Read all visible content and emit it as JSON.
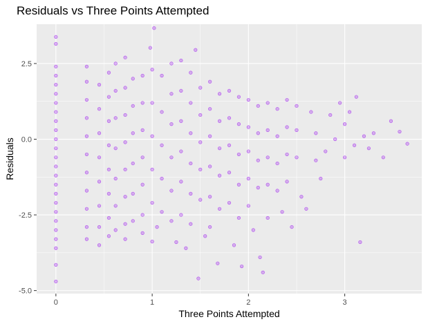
{
  "chart_data": {
    "type": "scatter",
    "title": "Residuals vs Three Points Attempted",
    "xlabel": "Three Points Attempted",
    "ylabel": "Residuals",
    "xlim": [
      -0.2,
      3.8
    ],
    "ylim": [
      -5.1,
      3.8
    ],
    "x_ticks": [
      0,
      1,
      2,
      3
    ],
    "x_tick_labels": [
      "0",
      "1",
      "2",
      "3"
    ],
    "y_ticks": [
      -5.0,
      -2.5,
      0.0,
      2.5
    ],
    "y_tick_labels": [
      "-5.0",
      "-2.5",
      "0.0",
      "2.5"
    ],
    "grid": true,
    "background": "#ebebeb",
    "grid_color": "#ffffff",
    "point_color": "#a020f0",
    "point_fill_opacity": 0.3,
    "series": [
      {
        "points": [
          [
            0,
            3.38
          ],
          [
            0,
            3.15
          ],
          [
            0,
            2.4
          ],
          [
            0,
            2.1
          ],
          [
            0,
            1.8
          ],
          [
            0,
            1.5
          ],
          [
            0,
            1.2
          ],
          [
            0,
            0.9
          ],
          [
            0,
            0.6
          ],
          [
            0,
            0.3
          ],
          [
            0,
            0.0
          ],
          [
            0,
            -0.3
          ],
          [
            0,
            -0.6
          ],
          [
            0,
            -0.9
          ],
          [
            0,
            -1.2
          ],
          [
            0,
            -1.5
          ],
          [
            0,
            -1.8
          ],
          [
            0,
            -2.1
          ],
          [
            0,
            -2.4
          ],
          [
            0,
            -2.7
          ],
          [
            0,
            -3.0
          ],
          [
            0,
            -3.3
          ],
          [
            0,
            -3.6
          ],
          [
            0,
            -4.15
          ],
          [
            0,
            -4.7
          ],
          [
            0.32,
            2.4
          ],
          [
            0.32,
            1.9
          ],
          [
            0.32,
            1.3
          ],
          [
            0.32,
            0.7
          ],
          [
            0.32,
            0.1
          ],
          [
            0.32,
            -0.5
          ],
          [
            0.32,
            -1.1
          ],
          [
            0.32,
            -1.7
          ],
          [
            0.32,
            -2.3
          ],
          [
            0.32,
            -2.9
          ],
          [
            0.32,
            -3.3
          ],
          [
            0.45,
            1.8
          ],
          [
            0.45,
            1.0
          ],
          [
            0.45,
            0.2
          ],
          [
            0.45,
            -0.6
          ],
          [
            0.45,
            -1.4
          ],
          [
            0.45,
            -2.2
          ],
          [
            0.45,
            -2.9
          ],
          [
            0.45,
            -3.5
          ],
          [
            0.55,
            2.2
          ],
          [
            0.55,
            1.4
          ],
          [
            0.55,
            0.6
          ],
          [
            0.55,
            -0.2
          ],
          [
            0.55,
            -1.0
          ],
          [
            0.55,
            -1.8
          ],
          [
            0.55,
            -2.6
          ],
          [
            0.55,
            -3.2
          ],
          [
            0.62,
            2.5
          ],
          [
            0.62,
            1.6
          ],
          [
            0.62,
            0.7
          ],
          [
            0.62,
            -0.3
          ],
          [
            0.62,
            -1.3
          ],
          [
            0.62,
            -2.2
          ],
          [
            0.62,
            -3.0
          ],
          [
            0.72,
            2.7
          ],
          [
            0.72,
            1.7
          ],
          [
            0.72,
            0.8
          ],
          [
            0.72,
            -0.1
          ],
          [
            0.72,
            -1.0
          ],
          [
            0.72,
            -1.9
          ],
          [
            0.72,
            -2.8
          ],
          [
            0.72,
            -3.3
          ],
          [
            0.8,
            2.0
          ],
          [
            0.8,
            1.1
          ],
          [
            0.8,
            0.2
          ],
          [
            0.8,
            -0.8
          ],
          [
            0.8,
            -1.8
          ],
          [
            0.8,
            -2.7
          ],
          [
            0.9,
            2.1
          ],
          [
            0.9,
            1.2
          ],
          [
            0.9,
            0.3
          ],
          [
            0.9,
            -0.6
          ],
          [
            0.9,
            -1.5
          ],
          [
            0.9,
            -2.5
          ],
          [
            0.9,
            -3.1
          ],
          [
            0.98,
            3.02
          ],
          [
            1.02,
            3.67
          ],
          [
            1.0,
            2.3
          ],
          [
            1.0,
            1.2
          ],
          [
            1.0,
            0.1
          ],
          [
            1.0,
            -1.0
          ],
          [
            1.0,
            -2.1
          ],
          [
            1.0,
            -3.38
          ],
          [
            1.05,
            -2.9
          ],
          [
            1.1,
            2.1
          ],
          [
            1.1,
            0.9
          ],
          [
            1.1,
            -0.2
          ],
          [
            1.1,
            -1.3
          ],
          [
            1.1,
            -2.4
          ],
          [
            1.2,
            2.5
          ],
          [
            1.2,
            1.5
          ],
          [
            1.2,
            0.5
          ],
          [
            1.2,
            -0.6
          ],
          [
            1.2,
            -1.7
          ],
          [
            1.2,
            -2.7
          ],
          [
            1.25,
            -3.4
          ],
          [
            1.3,
            2.6
          ],
          [
            1.3,
            1.6
          ],
          [
            1.3,
            0.6
          ],
          [
            1.3,
            -0.4
          ],
          [
            1.3,
            -1.4
          ],
          [
            1.3,
            -2.5
          ],
          [
            1.35,
            -3.6
          ],
          [
            1.4,
            2.2
          ],
          [
            1.4,
            1.2
          ],
          [
            1.4,
            0.2
          ],
          [
            1.4,
            -0.8
          ],
          [
            1.4,
            -1.8
          ],
          [
            1.4,
            -2.8
          ],
          [
            1.45,
            2.95
          ],
          [
            1.48,
            -4.6
          ],
          [
            1.5,
            1.7
          ],
          [
            1.5,
            0.8
          ],
          [
            1.5,
            -0.1
          ],
          [
            1.5,
            -1.0
          ],
          [
            1.5,
            -2.0
          ],
          [
            1.55,
            -3.2
          ],
          [
            1.6,
            1.9
          ],
          [
            1.6,
            1.0
          ],
          [
            1.6,
            0.1
          ],
          [
            1.6,
            -0.9
          ],
          [
            1.6,
            -1.9
          ],
          [
            1.6,
            -2.9
          ],
          [
            1.68,
            -4.1
          ],
          [
            1.7,
            1.5
          ],
          [
            1.7,
            0.6
          ],
          [
            1.7,
            -0.3
          ],
          [
            1.7,
            -1.2
          ],
          [
            1.7,
            -2.3
          ],
          [
            1.8,
            1.6
          ],
          [
            1.8,
            0.7
          ],
          [
            1.8,
            -0.2
          ],
          [
            1.8,
            -1.1
          ],
          [
            1.8,
            -2.1
          ],
          [
            1.85,
            -3.5
          ],
          [
            1.9,
            1.4
          ],
          [
            1.9,
            0.5
          ],
          [
            1.9,
            -0.5
          ],
          [
            1.9,
            -1.5
          ],
          [
            1.9,
            -2.6
          ],
          [
            1.93,
            -4.2
          ],
          [
            2.0,
            1.3
          ],
          [
            2.0,
            0.4
          ],
          [
            2.0,
            -0.4
          ],
          [
            2.0,
            -1.3
          ],
          [
            2.0,
            -2.2
          ],
          [
            2.05,
            -3.0
          ],
          [
            2.1,
            1.1
          ],
          [
            2.1,
            0.2
          ],
          [
            2.1,
            -0.7
          ],
          [
            2.1,
            -1.6
          ],
          [
            2.12,
            -3.9
          ],
          [
            2.15,
            -4.4
          ],
          [
            2.2,
            1.2
          ],
          [
            2.2,
            0.3
          ],
          [
            2.2,
            -0.6
          ],
          [
            2.2,
            -1.5
          ],
          [
            2.2,
            -2.6
          ],
          [
            2.3,
            1.0
          ],
          [
            2.3,
            0.1
          ],
          [
            2.3,
            -0.8
          ],
          [
            2.3,
            -1.7
          ],
          [
            2.35,
            -2.4
          ],
          [
            2.4,
            1.3
          ],
          [
            2.4,
            0.4
          ],
          [
            2.4,
            -0.5
          ],
          [
            2.4,
            -1.4
          ],
          [
            2.45,
            -2.9
          ],
          [
            2.5,
            1.1
          ],
          [
            2.5,
            0.3
          ],
          [
            2.5,
            -0.6
          ],
          [
            2.55,
            -1.9
          ],
          [
            2.6,
            -2.3
          ],
          [
            2.65,
            0.9
          ],
          [
            2.7,
            0.2
          ],
          [
            2.7,
            -0.7
          ],
          [
            2.75,
            -1.3
          ],
          [
            2.8,
            -0.4
          ],
          [
            2.85,
            0.8
          ],
          [
            2.9,
            0.0
          ],
          [
            2.95,
            1.2
          ],
          [
            3.0,
            0.5
          ],
          [
            3.0,
            -0.6
          ],
          [
            3.05,
            0.9
          ],
          [
            3.1,
            -0.2
          ],
          [
            3.12,
            1.4
          ],
          [
            3.16,
            -3.4
          ],
          [
            3.2,
            0.1
          ],
          [
            3.25,
            -0.3
          ],
          [
            3.3,
            0.2
          ],
          [
            3.4,
            -0.6
          ],
          [
            3.48,
            0.6
          ],
          [
            3.57,
            0.25
          ],
          [
            3.65,
            -0.15
          ]
        ]
      }
    ]
  }
}
